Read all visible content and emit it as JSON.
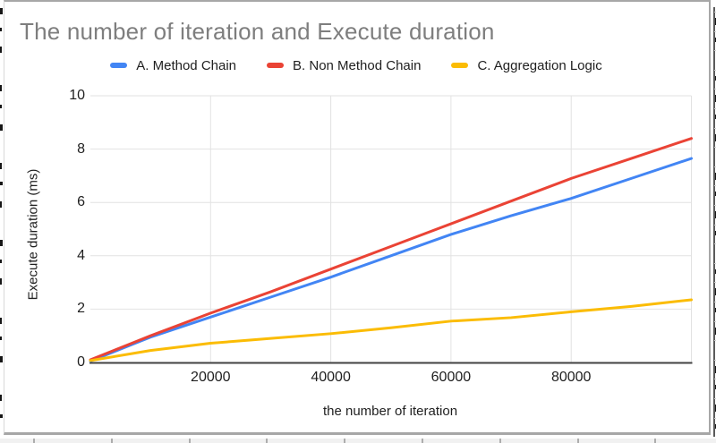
{
  "chart_data": {
    "type": "line",
    "title": "The number of iteration and Execute duration",
    "xlabel": "the number of iteration",
    "ylabel": "Execute duration (ms)",
    "xlim": [
      0,
      100000
    ],
    "ylim": [
      0,
      10
    ],
    "grid": true,
    "legend_position": "top",
    "x": [
      1,
      10000,
      20000,
      30000,
      40000,
      50000,
      60000,
      70000,
      80000,
      90000,
      100000
    ],
    "series": [
      {
        "name": "A. Method Chain",
        "color": "#4285F4",
        "values": [
          0.05,
          0.95,
          1.7,
          2.45,
          3.2,
          4.0,
          4.8,
          5.5,
          6.15,
          6.9,
          7.65
        ]
      },
      {
        "name": "B. Non Method Chain",
        "color": "#EA4335",
        "values": [
          0.1,
          1.0,
          1.85,
          2.65,
          3.5,
          4.35,
          5.2,
          6.05,
          6.9,
          7.65,
          8.4
        ]
      },
      {
        "name": "C. Aggregation Logic",
        "color": "#FBBC04",
        "values": [
          0.07,
          0.45,
          0.72,
          0.9,
          1.08,
          1.3,
          1.55,
          1.68,
          1.9,
          2.1,
          2.35
        ]
      }
    ],
    "xticks": [
      {
        "value": 20000,
        "label": "20000"
      },
      {
        "value": 40000,
        "label": "40000"
      },
      {
        "value": 60000,
        "label": "60000"
      },
      {
        "value": 80000,
        "label": "80000"
      }
    ],
    "yticks": [
      {
        "value": 0,
        "label": "0"
      },
      {
        "value": 2,
        "label": "2"
      },
      {
        "value": 4,
        "label": "4"
      },
      {
        "value": 6,
        "label": "6"
      },
      {
        "value": 8,
        "label": "8"
      },
      {
        "value": 10,
        "label": "10"
      }
    ],
    "colors": {
      "title_text": "#7e7e7e",
      "axis_text": "#1f1f1f",
      "gridline": "#e2e2e2",
      "axis_line": "#424242"
    }
  }
}
